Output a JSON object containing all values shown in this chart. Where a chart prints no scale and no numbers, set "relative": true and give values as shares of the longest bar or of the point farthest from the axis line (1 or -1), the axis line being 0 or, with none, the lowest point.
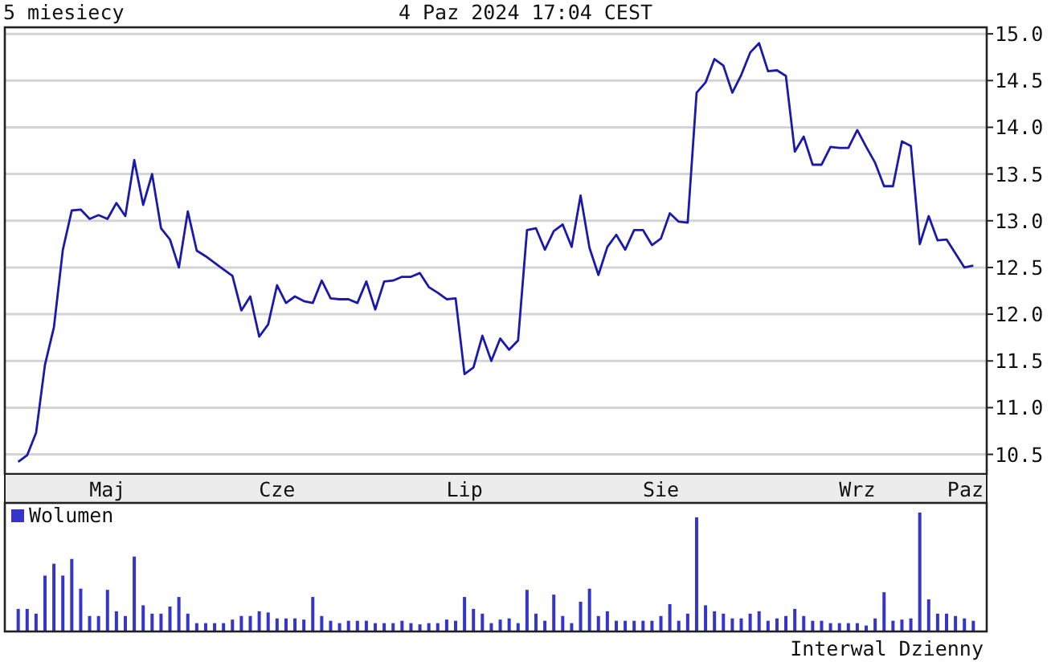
{
  "chart_data": [
    {
      "type": "line",
      "title": "5 miesiecy",
      "subtitle": "4 Paz 2024 17:04 CEST",
      "annotations": [
        "Interwal Dzienny"
      ],
      "categories": [
        null,
        null,
        null,
        null,
        null,
        null,
        null,
        null,
        null,
        null,
        "Maj",
        null,
        null,
        null,
        null,
        null,
        null,
        null,
        null,
        null,
        null,
        null,
        null,
        null,
        null,
        null,
        null,
        null,
        null,
        "Cze",
        null,
        null,
        null,
        null,
        null,
        null,
        null,
        null,
        null,
        null,
        null,
        null,
        null,
        null,
        null,
        null,
        null,
        null,
        null,
        null,
        "Lip",
        null,
        null,
        null,
        null,
        null,
        null,
        null,
        null,
        null,
        null,
        null,
        null,
        null,
        null,
        null,
        null,
        null,
        null,
        null,
        null,
        null,
        "Sie",
        null,
        null,
        null,
        null,
        null,
        null,
        null,
        null,
        null,
        null,
        null,
        null,
        null,
        null,
        null,
        null,
        null,
        null,
        null,
        null,
        null,
        "Wrz",
        null,
        null,
        null,
        null,
        null,
        null,
        null,
        null,
        null,
        null,
        null,
        null,
        "Paz"
      ],
      "series": [
        {
          "color": "#1a1aaa",
          "values": [
            10.42,
            10.49,
            10.73,
            11.46,
            11.86,
            12.69,
            13.11,
            13.12,
            13.02,
            13.06,
            13.02,
            13.19,
            13.05,
            13.65,
            13.17,
            13.5,
            12.92,
            12.8,
            12.5,
            13.1,
            12.68,
            12.62,
            12.55,
            12.48,
            12.41,
            12.04,
            12.19,
            11.76,
            11.89,
            12.31,
            12.12,
            12.19,
            12.14,
            12.12,
            12.36,
            12.17,
            12.16,
            12.16,
            12.12,
            12.35,
            12.05,
            12.35,
            12.36,
            12.4,
            12.4,
            12.44,
            12.29,
            12.23,
            12.16,
            12.17,
            11.36,
            11.43,
            11.77,
            11.5,
            11.74,
            11.62,
            11.72,
            12.9,
            12.92,
            12.69,
            12.89,
            12.96,
            12.72,
            13.27,
            12.71,
            12.42,
            12.72,
            12.85,
            12.69,
            12.9,
            12.9,
            12.74,
            12.81,
            13.08,
            12.99,
            12.98,
            14.37,
            14.48,
            14.73,
            14.66,
            14.37,
            14.56,
            14.8,
            14.9,
            14.6,
            14.61,
            14.55,
            13.74,
            13.9,
            13.6,
            13.6,
            13.79,
            13.78,
            13.78,
            13.97,
            13.79,
            13.62,
            13.37,
            13.37,
            13.85,
            13.8,
            12.75,
            13.05,
            12.79,
            12.8,
            12.65,
            12.5,
            12.52
          ]
        }
      ],
      "ylim": [
        10.29,
        15.07
      ],
      "yticks": [
        {
          "value": 10.5,
          "label": "10.5"
        },
        {
          "value": 11,
          "label": "11.0"
        },
        {
          "value": 11.5,
          "label": "11.5"
        },
        {
          "value": 12,
          "label": "12.0"
        },
        {
          "value": 12.5,
          "label": "12.5"
        },
        {
          "value": 13,
          "label": "13.0"
        },
        {
          "value": 13.5,
          "label": "13.5"
        },
        {
          "value": 14,
          "label": "14.0"
        },
        {
          "value": 14.5,
          "label": "14.5"
        },
        {
          "value": 15,
          "label": "15.0"
        }
      ],
      "grid": "y"
    },
    {
      "type": "bar",
      "relative": true,
      "legend": "top left",
      "categories": [
        null,
        null,
        null,
        null,
        null,
        null,
        null,
        null,
        null,
        null,
        null,
        null,
        null,
        null,
        null,
        null,
        null,
        null,
        null,
        null,
        null,
        null,
        null,
        null,
        null,
        null,
        null,
        null,
        null,
        null,
        null,
        null,
        null,
        null,
        null,
        null,
        null,
        null,
        null,
        null,
        null,
        null,
        null,
        null,
        null,
        null,
        null,
        null,
        null,
        null,
        null,
        null,
        null,
        null,
        null,
        null,
        null,
        null,
        null,
        null,
        null,
        null,
        null,
        null,
        null,
        null,
        null,
        null,
        null,
        null,
        null,
        null,
        null,
        null,
        null,
        null,
        null,
        null,
        null,
        null,
        null,
        null,
        null,
        null,
        null,
        null,
        null,
        null,
        null,
        null,
        null,
        null,
        null,
        null,
        null,
        null,
        null,
        null,
        null,
        null,
        null,
        null,
        null,
        null,
        null,
        null,
        null,
        null
      ],
      "series": [
        {
          "name": "Wolumen",
          "color": "#3535c8",
          "values": [
            0.19,
            0.19,
            0.15,
            0.47,
            0.57,
            0.47,
            0.61,
            0.36,
            0.13,
            0.13,
            0.35,
            0.17,
            0.13,
            0.63,
            0.22,
            0.15,
            0.15,
            0.21,
            0.29,
            0.15,
            0.07,
            0.07,
            0.07,
            0.07,
            0.1,
            0.13,
            0.13,
            0.17,
            0.16,
            0.11,
            0.11,
            0.11,
            0.1,
            0.29,
            0.13,
            0.09,
            0.07,
            0.09,
            0.09,
            0.09,
            0.07,
            0.07,
            0.07,
            0.09,
            0.07,
            0.06,
            0.07,
            0.07,
            0.1,
            0.09,
            0.29,
            0.19,
            0.15,
            0.07,
            0.1,
            0.11,
            0.07,
            0.35,
            0.15,
            0.09,
            0.31,
            0.13,
            0.07,
            0.25,
            0.36,
            0.13,
            0.17,
            0.09,
            0.09,
            0.09,
            0.09,
            0.09,
            0.13,
            0.23,
            0.09,
            0.15,
            0.96,
            0.22,
            0.17,
            0.15,
            0.11,
            0.11,
            0.15,
            0.17,
            0.09,
            0.11,
            0.13,
            0.19,
            0.13,
            0.09,
            0.09,
            0.07,
            0.07,
            0.07,
            0.07,
            0.05,
            0.11,
            0.33,
            0.09,
            0.1,
            0.11,
            1,
            0.27,
            0.15,
            0.15,
            0.13,
            0.11,
            0.09
          ]
        }
      ]
    }
  ]
}
